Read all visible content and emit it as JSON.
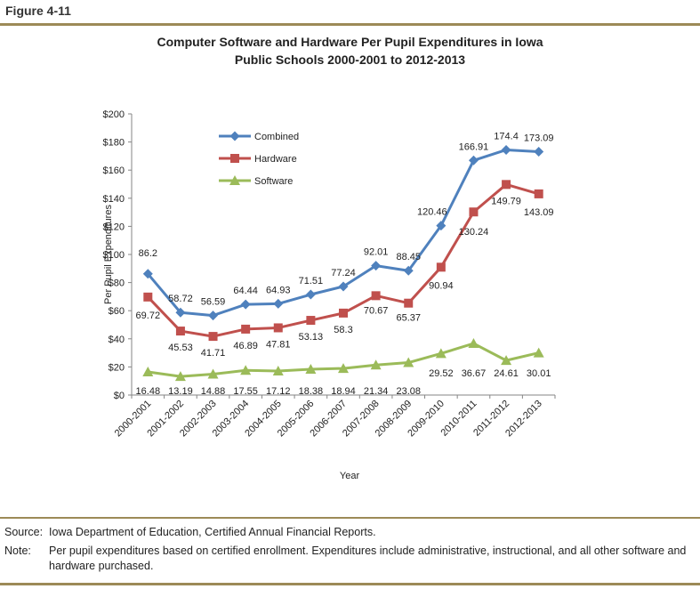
{
  "figure_label": "Figure 4-11",
  "title_line1": "Computer Software and Hardware Per Pupil Expenditures in Iowa",
  "title_line2": "Public Schools 2000-2001 to 2012-2013",
  "source_key": "Source:",
  "source_text": "Iowa Department of Education, Certified Annual Financial Reports.",
  "note_key": "Note:",
  "note_text": "Per pupil expenditures based on certified enrollment. Expenditures include administrative, instructional, and all other software and hardware purchased.",
  "colors": {
    "combined": "#4f81bd",
    "hardware": "#c0504d",
    "software": "#9bbb59"
  },
  "chart_data": {
    "type": "line",
    "xlabel": "Year",
    "ylabel": "Per Pupil Expenditures",
    "ylim": [
      0,
      200
    ],
    "yticks": [
      "$0",
      "$20",
      "$40",
      "$60",
      "$80",
      "$100",
      "$120",
      "$140",
      "$160",
      "$180",
      "$200"
    ],
    "grid": false,
    "legend_position": "top-left",
    "categories": [
      "2000-2001",
      "2001-2002",
      "2002-2003",
      "2003-2004",
      "2004-2005",
      "2005-2006",
      "2006-2007",
      "2007-2008",
      "2008-2009",
      "2009-2010",
      "2010-2011",
      "2011-2012",
      "2012-2013"
    ],
    "series": [
      {
        "name": "Combined",
        "marker": "diamond",
        "labels": [
          "86.2",
          "58.72",
          "56.59",
          "64.44",
          "64.93",
          "71.51",
          "77.24",
          "92.01",
          "88.45",
          "120.46",
          "166.91",
          "174.4",
          "173.09"
        ],
        "values": [
          86.2,
          58.72,
          56.59,
          64.44,
          64.93,
          71.51,
          77.24,
          92.01,
          88.45,
          120.46,
          166.91,
          174.4,
          173.09
        ]
      },
      {
        "name": "Hardware",
        "marker": "square",
        "labels": [
          "69.72",
          "45.53",
          "41.71",
          "46.89",
          "47.81",
          "53.13",
          "58.3",
          "70.67",
          "65.37",
          "90.94",
          "130.24",
          "149.79",
          "143.09"
        ],
        "values": [
          69.72,
          45.53,
          41.71,
          46.89,
          47.81,
          53.13,
          58.3,
          70.67,
          65.37,
          90.94,
          130.24,
          149.79,
          143.09
        ]
      },
      {
        "name": "Software",
        "marker": "triangle",
        "labels": [
          "16.48",
          "13.19",
          "14.88",
          "17.55",
          "17.12",
          "18.38",
          "18.94",
          "21.34",
          "23.08",
          "29.52",
          "36.67",
          "24.61",
          "30.01"
        ],
        "values": [
          16.48,
          13.19,
          14.88,
          17.55,
          17.12,
          18.38,
          18.94,
          21.34,
          23.08,
          29.52,
          36.67,
          24.61,
          30.01
        ]
      }
    ]
  }
}
